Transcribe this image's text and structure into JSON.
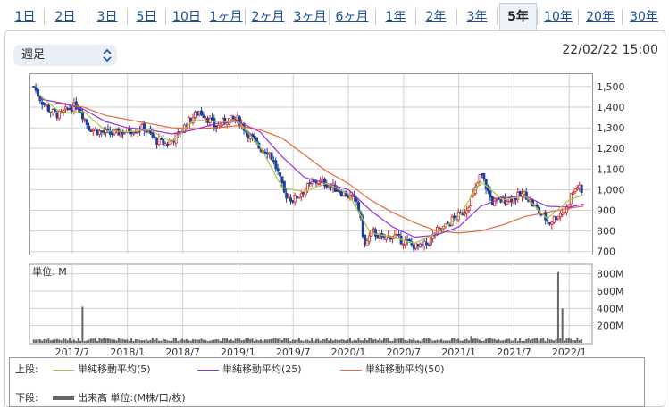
{
  "tabs": [
    {
      "label": "1日",
      "active": false
    },
    {
      "label": "2日",
      "active": false
    },
    {
      "label": "3日",
      "active": false
    },
    {
      "label": "5日",
      "active": false
    },
    {
      "label": "10日",
      "active": false
    },
    {
      "label": "1ヶ月",
      "active": false
    },
    {
      "label": "2ヶ月",
      "active": false
    },
    {
      "label": "3ヶ月",
      "active": false
    },
    {
      "label": "6ヶ月",
      "active": false
    },
    {
      "label": "1年",
      "active": false
    },
    {
      "label": "2年",
      "active": false
    },
    {
      "label": "3年",
      "active": false
    },
    {
      "label": "5年",
      "active": true
    },
    {
      "label": "10年",
      "active": false
    },
    {
      "label": "20年",
      "active": false
    },
    {
      "label": "30年",
      "active": false
    }
  ],
  "period_select": {
    "value": "週足",
    "icon": "chevron-updown-icon"
  },
  "timestamp": "22/02/22 15:00",
  "colors": {
    "ma5": "#a8c84a",
    "ma25": "#9b30d9",
    "ma50": "#e4673c",
    "candle_up": "#cc2a2a",
    "candle_down": "#1d3f99",
    "volume": "#666666",
    "grid": "#d0d0d0"
  },
  "chart_data": [
    {
      "type": "candlestick",
      "ylim": [
        690,
        1560
      ],
      "yticks": [
        "1,500",
        "1,400",
        "1,300",
        "1,200",
        "1,100",
        "1,000",
        "900",
        "800",
        "700"
      ],
      "ytick_values": [
        1500,
        1400,
        1300,
        1200,
        1100,
        1000,
        900,
        800,
        700
      ],
      "xticks": [
        "2017/7",
        "2018/1",
        "2018/7",
        "2019/1",
        "2019/7",
        "2020/1",
        "2020/7",
        "2021/1",
        "2021/7",
        "2022/1"
      ],
      "xtick_positions": [
        2017.5,
        2018.0,
        2018.5,
        2019.0,
        2019.5,
        2020.0,
        2020.5,
        2021.0,
        2021.5,
        2022.0
      ],
      "xlim": [
        2017.12,
        2022.2
      ],
      "close_anchors": [
        [
          2017.15,
          1500
        ],
        [
          2017.22,
          1430
        ],
        [
          2017.3,
          1380
        ],
        [
          2017.38,
          1360
        ],
        [
          2017.46,
          1390
        ],
        [
          2017.55,
          1410
        ],
        [
          2017.65,
          1300
        ],
        [
          2017.75,
          1280
        ],
        [
          2017.85,
          1270
        ],
        [
          2017.95,
          1280
        ],
        [
          2018.05,
          1290
        ],
        [
          2018.15,
          1300
        ],
        [
          2018.25,
          1240
        ],
        [
          2018.35,
          1220
        ],
        [
          2018.45,
          1260
        ],
        [
          2018.55,
          1330
        ],
        [
          2018.65,
          1380
        ],
        [
          2018.7,
          1360
        ],
        [
          2018.8,
          1300
        ],
        [
          2018.9,
          1340
        ],
        [
          2019.0,
          1340
        ],
        [
          2019.12,
          1250
        ],
        [
          2019.2,
          1200
        ],
        [
          2019.28,
          1185
        ],
        [
          2019.35,
          1100
        ],
        [
          2019.42,
          980
        ],
        [
          2019.5,
          950
        ],
        [
          2019.6,
          1000
        ],
        [
          2019.7,
          1040
        ],
        [
          2019.8,
          1030
        ],
        [
          2019.9,
          1000
        ],
        [
          2020.0,
          970
        ],
        [
          2020.08,
          940
        ],
        [
          2020.15,
          730
        ],
        [
          2020.22,
          800
        ],
        [
          2020.3,
          760
        ],
        [
          2020.4,
          780
        ],
        [
          2020.5,
          750
        ],
        [
          2020.58,
          730
        ],
        [
          2020.65,
          720
        ],
        [
          2020.72,
          740
        ],
        [
          2020.8,
          800
        ],
        [
          2020.88,
          820
        ],
        [
          2020.95,
          860
        ],
        [
          2021.02,
          880
        ],
        [
          2021.08,
          920
        ],
        [
          2021.15,
          1000
        ],
        [
          2021.2,
          1080
        ],
        [
          2021.3,
          940
        ],
        [
          2021.4,
          950
        ],
        [
          2021.5,
          960
        ],
        [
          2021.6,
          980
        ],
        [
          2021.68,
          920
        ],
        [
          2021.75,
          880
        ],
        [
          2021.82,
          840
        ],
        [
          2021.9,
          880
        ],
        [
          2021.97,
          900
        ],
        [
          2022.02,
          980
        ],
        [
          2022.08,
          1020
        ],
        [
          2022.13,
          960
        ]
      ],
      "ma5": [
        [
          2017.2,
          1460
        ],
        [
          2017.4,
          1370
        ],
        [
          2017.6,
          1380
        ],
        [
          2017.8,
          1285
        ],
        [
          2018.0,
          1280
        ],
        [
          2018.2,
          1290
        ],
        [
          2018.4,
          1230
        ],
        [
          2018.6,
          1340
        ],
        [
          2018.8,
          1330
        ],
        [
          2019.0,
          1330
        ],
        [
          2019.2,
          1210
        ],
        [
          2019.4,
          1010
        ],
        [
          2019.6,
          990
        ],
        [
          2019.8,
          1030
        ],
        [
          2020.0,
          980
        ],
        [
          2020.2,
          790
        ],
        [
          2020.4,
          770
        ],
        [
          2020.6,
          740
        ],
        [
          2020.8,
          790
        ],
        [
          2021.0,
          870
        ],
        [
          2021.2,
          1040
        ],
        [
          2021.4,
          950
        ],
        [
          2021.6,
          970
        ],
        [
          2021.8,
          860
        ],
        [
          2022.0,
          950
        ],
        [
          2022.13,
          975
        ]
      ],
      "ma25": [
        [
          2017.2,
          1440
        ],
        [
          2017.4,
          1420
        ],
        [
          2017.6,
          1390
        ],
        [
          2017.8,
          1330
        ],
        [
          2018.0,
          1300
        ],
        [
          2018.2,
          1290
        ],
        [
          2018.4,
          1270
        ],
        [
          2018.6,
          1290
        ],
        [
          2018.8,
          1320
        ],
        [
          2019.0,
          1330
        ],
        [
          2019.2,
          1280
        ],
        [
          2019.4,
          1160
        ],
        [
          2019.6,
          1060
        ],
        [
          2019.8,
          1030
        ],
        [
          2020.0,
          1000
        ],
        [
          2020.2,
          900
        ],
        [
          2020.4,
          820
        ],
        [
          2020.6,
          770
        ],
        [
          2020.8,
          780
        ],
        [
          2021.0,
          820
        ],
        [
          2021.2,
          920
        ],
        [
          2021.4,
          960
        ],
        [
          2021.6,
          970
        ],
        [
          2021.8,
          920
        ],
        [
          2022.0,
          915
        ],
        [
          2022.13,
          930
        ]
      ],
      "ma50": [
        [
          2017.35,
          1420
        ],
        [
          2017.6,
          1400
        ],
        [
          2017.8,
          1360
        ],
        [
          2018.0,
          1340
        ],
        [
          2018.2,
          1320
        ],
        [
          2018.4,
          1300
        ],
        [
          2018.6,
          1295
        ],
        [
          2018.8,
          1300
        ],
        [
          2019.0,
          1310
        ],
        [
          2019.2,
          1290
        ],
        [
          2019.4,
          1250
        ],
        [
          2019.6,
          1170
        ],
        [
          2019.8,
          1090
        ],
        [
          2020.0,
          1030
        ],
        [
          2020.2,
          950
        ],
        [
          2020.4,
          890
        ],
        [
          2020.6,
          840
        ],
        [
          2020.8,
          800
        ],
        [
          2021.0,
          790
        ],
        [
          2021.2,
          800
        ],
        [
          2021.4,
          830
        ],
        [
          2021.6,
          870
        ],
        [
          2021.8,
          890
        ],
        [
          2022.0,
          910
        ],
        [
          2022.13,
          920
        ]
      ]
    },
    {
      "type": "bar",
      "title": "単位: M",
      "ylim": [
        0,
        900
      ],
      "yticks": [
        "800M",
        "600M",
        "400M",
        "200M"
      ],
      "ytick_values": [
        800,
        600,
        400,
        200
      ],
      "xlim": [
        2017.12,
        2022.2
      ],
      "baseline": 40,
      "spikes": [
        [
          2017.6,
          420
        ],
        [
          2021.9,
          820
        ],
        [
          2021.93,
          400
        ],
        [
          2019.45,
          60
        ],
        [
          2021.12,
          80
        ]
      ]
    }
  ],
  "legend": {
    "upper_label": "上段:",
    "ma5_label": "単純移動平均(5)",
    "ma25_label": "単純移動平均(25)",
    "ma50_label": "単純移動平均(50)",
    "lower_label": "下段:",
    "volume_label": "出来高 単位:(M株/口/枚)"
  }
}
